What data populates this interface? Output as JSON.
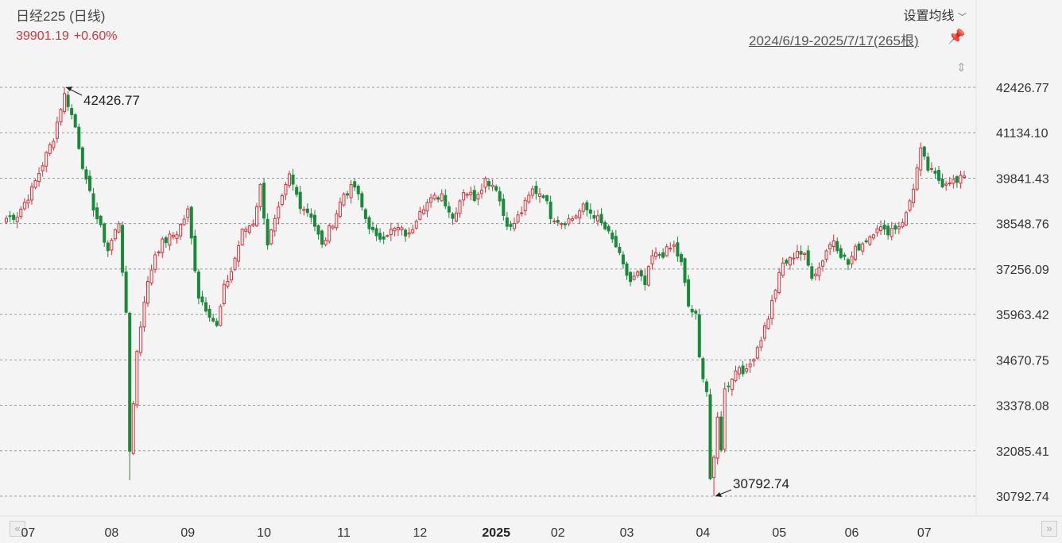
{
  "header": {
    "title": "日经225 (日线)",
    "last": "39901.19",
    "change": "+0.60%",
    "ma_button": "设置均线",
    "range": "2024/6/19-2025/7/17(265根)"
  },
  "colors": {
    "up": "#d8333a",
    "down": "#1a8a3a",
    "grid": "#9a9a9a"
  },
  "icons": {
    "pin": "pin-icon",
    "resize": "resize-icon",
    "nav_left": "double-left-icon",
    "nav_right": "double-right-icon",
    "dropdown": "chevron-down-icon"
  },
  "nav": {
    "left": "«",
    "right": "»"
  },
  "chart_data": {
    "type": "candlestick",
    "title": "日经225 (日线)",
    "period": "2024/6/19-2025/7/17",
    "bar_count": 265,
    "y_ticks": [
      "42426.77",
      "41134.10",
      "39841.43",
      "38548.76",
      "37256.09",
      "35963.42",
      "34670.75",
      "33378.08",
      "32085.41",
      "30792.74"
    ],
    "ylim": [
      30792.74,
      42426.77
    ],
    "x_ticks": [
      {
        "label": "07",
        "bar": 6
      },
      {
        "label": "08",
        "bar": 29
      },
      {
        "label": "09",
        "bar": 50
      },
      {
        "label": "10",
        "bar": 71
      },
      {
        "label": "11",
        "bar": 93
      },
      {
        "label": "12",
        "bar": 114
      },
      {
        "label": "2025",
        "bar": 135,
        "bold": true
      },
      {
        "label": "02",
        "bar": 152
      },
      {
        "label": "03",
        "bar": 171
      },
      {
        "label": "04",
        "bar": 192
      },
      {
        "label": "05",
        "bar": 213
      },
      {
        "label": "06",
        "bar": 233
      },
      {
        "label": "07",
        "bar": 253
      }
    ],
    "annotations": [
      {
        "label": "42426.77",
        "bar": 16,
        "value": 42426.77,
        "kind": "high"
      },
      {
        "label": "30792.74",
        "bar": 195,
        "value": 30792.74,
        "kind": "low"
      }
    ],
    "anchors": [
      [
        0,
        38700
      ],
      [
        3,
        38800
      ],
      [
        7,
        39500
      ],
      [
        13,
        41000
      ],
      [
        16,
        42300
      ],
      [
        19,
        41300
      ],
      [
        22,
        39700
      ],
      [
        25,
        38700
      ],
      [
        28,
        37800
      ],
      [
        31,
        38600
      ],
      [
        33,
        35900
      ],
      [
        34,
        32085
      ],
      [
        36,
        34900
      ],
      [
        38,
        36400
      ],
      [
        41,
        37700
      ],
      [
        43,
        38000
      ],
      [
        47,
        38300
      ],
      [
        50,
        38900
      ],
      [
        53,
        36500
      ],
      [
        56,
        36000
      ],
      [
        58,
        35600
      ],
      [
        60,
        36700
      ],
      [
        62,
        37200
      ],
      [
        65,
        38300
      ],
      [
        68,
        38600
      ],
      [
        70,
        39600
      ],
      [
        72,
        38000
      ],
      [
        75,
        38900
      ],
      [
        78,
        39900
      ],
      [
        81,
        39100
      ],
      [
        84,
        38800
      ],
      [
        87,
        37900
      ],
      [
        90,
        38600
      ],
      [
        93,
        39400
      ],
      [
        96,
        39600
      ],
      [
        99,
        38700
      ],
      [
        102,
        38100
      ],
      [
        105,
        38300
      ],
      [
        108,
        38400
      ],
      [
        111,
        38200
      ],
      [
        114,
        39000
      ],
      [
        117,
        39200
      ],
      [
        120,
        39400
      ],
      [
        123,
        38700
      ],
      [
        126,
        39500
      ],
      [
        129,
        39300
      ],
      [
        132,
        39800
      ],
      [
        135,
        39600
      ],
      [
        137,
        38800
      ],
      [
        139,
        38400
      ],
      [
        142,
        38900
      ],
      [
        145,
        39500
      ],
      [
        148,
        39400
      ],
      [
        150,
        38800
      ],
      [
        153,
        38600
      ],
      [
        156,
        38700
      ],
      [
        159,
        39000
      ],
      [
        162,
        38800
      ],
      [
        165,
        38400
      ],
      [
        168,
        37900
      ],
      [
        170,
        37300
      ],
      [
        172,
        36900
      ],
      [
        174,
        37100
      ],
      [
        176,
        36800
      ],
      [
        178,
        37600
      ],
      [
        181,
        37700
      ],
      [
        184,
        37900
      ],
      [
        186,
        37400
      ],
      [
        188,
        36200
      ],
      [
        190,
        35900
      ],
      [
        191,
        34700
      ],
      [
        193,
        33800
      ],
      [
        194,
        31300
      ],
      [
        196,
        33000
      ],
      [
        197,
        32200
      ],
      [
        198,
        33800
      ],
      [
        200,
        34200
      ],
      [
        202,
        34500
      ],
      [
        204,
        34300
      ],
      [
        206,
        34800
      ],
      [
        208,
        35300
      ],
      [
        210,
        35900
      ],
      [
        212,
        36700
      ],
      [
        214,
        37400
      ],
      [
        216,
        37500
      ],
      [
        218,
        37800
      ],
      [
        220,
        37600
      ],
      [
        222,
        37100
      ],
      [
        224,
        37300
      ],
      [
        226,
        37800
      ],
      [
        228,
        38100
      ],
      [
        230,
        37700
      ],
      [
        232,
        37400
      ],
      [
        234,
        37800
      ],
      [
        236,
        38000
      ],
      [
        238,
        38200
      ],
      [
        240,
        38500
      ],
      [
        242,
        38300
      ],
      [
        244,
        38400
      ],
      [
        246,
        38500
      ],
      [
        248,
        38800
      ],
      [
        250,
        39600
      ],
      [
        252,
        40600
      ],
      [
        254,
        40100
      ],
      [
        256,
        39900
      ],
      [
        258,
        39700
      ],
      [
        260,
        39800
      ],
      [
        262,
        39700
      ],
      [
        264,
        39901
      ]
    ]
  }
}
